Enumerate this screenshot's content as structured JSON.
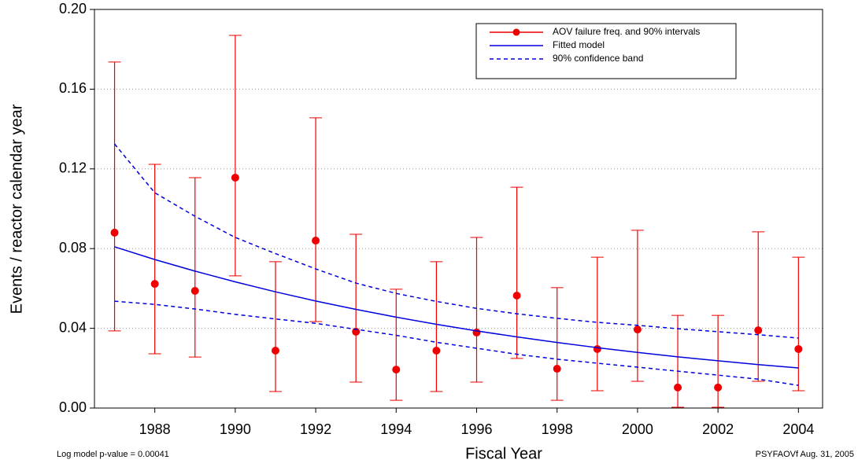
{
  "chart_data": {
    "type": "errorbar_line",
    "xlabel": "Fiscal Year",
    "ylabel": "Events / reactor calendar year",
    "footnote_left": "Log model p-value = 0.00041",
    "footnote_right": "PSYFAOVf  Aug. 31, 2005",
    "x": [
      1987,
      1988,
      1989,
      1990,
      1991,
      1992,
      1993,
      1994,
      1995,
      1996,
      1997,
      1998,
      1999,
      2000,
      2001,
      2002,
      2003,
      2004
    ],
    "xlim": [
      1986.5,
      2004.6
    ],
    "xticks": [
      1988,
      1990,
      1992,
      1994,
      1996,
      1998,
      2000,
      2002,
      2004
    ],
    "ylim": [
      0,
      0.2
    ],
    "yticks": [
      {
        "value": 0,
        "label": "0.00"
      },
      0.04,
      0.08,
      0.12,
      0.16,
      {
        "value": 0.2,
        "label": "0.20"
      }
    ],
    "grid": true,
    "legend": "upper right",
    "series": [
      {
        "name": "AOV failure freq. and 90% intervals",
        "color": "#ee0000",
        "values": [
          0.088,
          0.0623,
          0.0588,
          0.1156,
          0.0288,
          0.084,
          0.0383,
          0.0193,
          0.0288,
          0.0379,
          0.0564,
          0.0197,
          0.0296,
          0.0394,
          0.0103,
          0.0103,
          0.039,
          0.0296
        ],
        "lower": [
          0.0387,
          0.0272,
          0.0256,
          0.0663,
          0.0083,
          0.0434,
          0.013,
          0.0039,
          0.0083,
          0.013,
          0.0249,
          0.0039,
          0.0087,
          0.0134,
          0.0004,
          0.0004,
          0.0134,
          0.0087
        ],
        "upper": [
          0.1736,
          0.1223,
          0.1156,
          0.187,
          0.0734,
          0.1456,
          0.0872,
          0.0596,
          0.0734,
          0.0856,
          0.1108,
          0.0604,
          0.0757,
          0.0892,
          0.0465,
          0.0465,
          0.0884,
          0.0757
        ]
      },
      {
        "name": "Fitted model",
        "color": "#0000dd",
        "values": [
          0.0809,
          0.0745,
          0.0687,
          0.0633,
          0.0583,
          0.0537,
          0.0495,
          0.0456,
          0.042,
          0.0387,
          0.0357,
          0.0329,
          0.0303,
          0.0279,
          0.0257,
          0.0237,
          0.0218,
          0.0201
        ]
      },
      {
        "name": "90% confidence band",
        "color": "#0000dd",
        "dashed": true,
        "upper": [
          0.1325,
          0.108,
          0.0962,
          0.0856,
          0.0775,
          0.0698,
          0.0627,
          0.0575,
          0.0535,
          0.05,
          0.0473,
          0.045,
          0.043,
          0.0415,
          0.0398,
          0.0383,
          0.0368,
          0.0351
        ],
        "lower": [
          0.0536,
          0.052,
          0.0497,
          0.047,
          0.0447,
          0.0425,
          0.0395,
          0.0365,
          0.033,
          0.03,
          0.027,
          0.0245,
          0.0225,
          0.0205,
          0.0185,
          0.0165,
          0.0145,
          0.0114
        ]
      }
    ]
  }
}
